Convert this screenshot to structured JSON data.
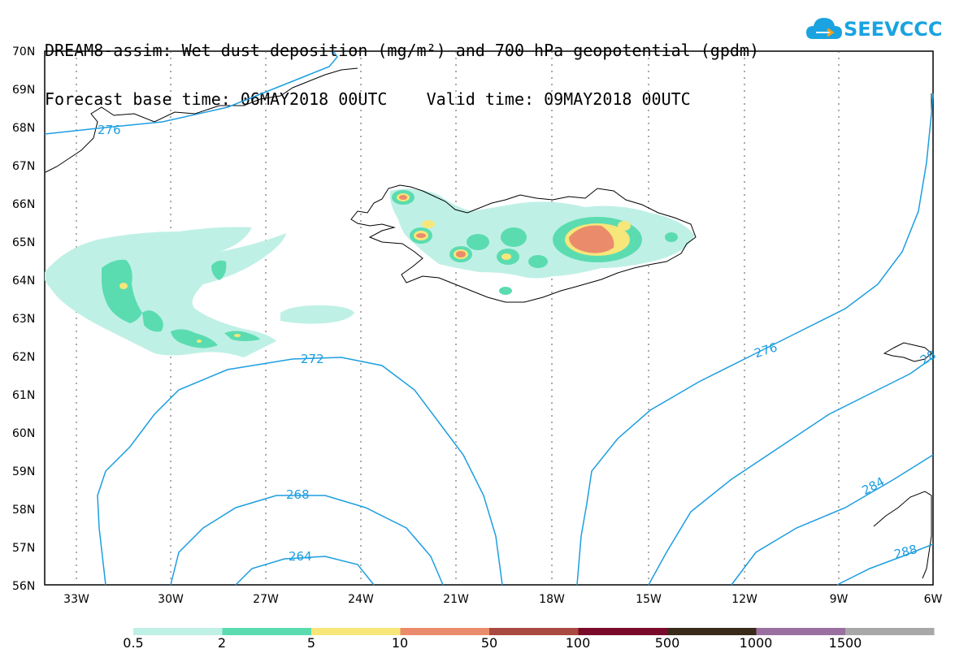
{
  "title": {
    "line1": "DREAM8-assim: Wet dust deposition (mg/m²) and 700 hPa geopotential (gpdm)",
    "line2": "Forecast base time: 06MAY2018 00UTC    Valid time: 09MAY2018 00UTC"
  },
  "logo": {
    "text": "SEEVCCC",
    "icon": "cloud-icon",
    "color": "#1aa3e0"
  },
  "axes": {
    "lat_labels": [
      "70N",
      "69N",
      "68N",
      "67N",
      "66N",
      "65N",
      "64N",
      "63N",
      "62N",
      "61N",
      "60N",
      "59N",
      "58N",
      "57N",
      "56N"
    ],
    "lon_labels": [
      "33W",
      "30W",
      "27W",
      "24W",
      "21W",
      "18W",
      "15W",
      "12W",
      "9W",
      "6W"
    ]
  },
  "contours": {
    "color": "#1d9ee0",
    "labels": [
      "276",
      "272",
      "268",
      "264",
      "276",
      "284",
      "288",
      "28"
    ]
  },
  "colorbar": {
    "labels": [
      "0.5",
      "2",
      "5",
      "10",
      "50",
      "100",
      "500",
      "1000",
      "1500"
    ],
    "colors": [
      "#bff0e6",
      "#5bdcb0",
      "#f7e67a",
      "#ea8c6c",
      "#a94a40",
      "#7a0a2a",
      "#3a2a1a",
      "#9a70a0",
      "#a8a8a8"
    ]
  }
}
